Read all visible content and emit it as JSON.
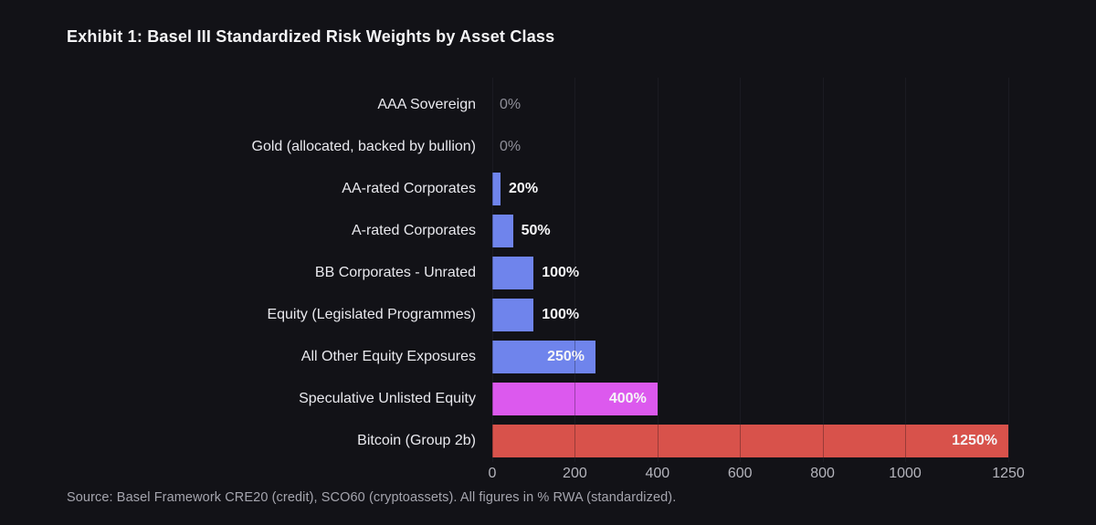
{
  "title": "Exhibit 1: Basel III Standardized Risk Weights by Asset Class",
  "source": "Source: Basel Framework CRE20 (credit), SCO60 (cryptoassets). All figures in % RWA (standardized).",
  "colors": {
    "background": "#121217",
    "bar_blue": "#6f84ec",
    "bar_magenta": "#dc59ee",
    "bar_red": "#d8524b",
    "grid": "#24242b",
    "title_text": "#f4f4f6",
    "category_text": "#e9e9ee",
    "value_text": "#f6f6f8",
    "zero_value_text": "#8f8f99",
    "tick_text": "#b4b4bc",
    "source_text": "#a5a5ae"
  },
  "chart_data": {
    "type": "bar",
    "orientation": "horizontal",
    "title": "Exhibit 1: Basel III Standardized Risk Weights by Asset Class",
    "xlabel": "",
    "ylabel": "",
    "xlim": [
      0,
      1250
    ],
    "xticks": [
      0,
      200,
      400,
      600,
      800,
      1000,
      1250
    ],
    "grid": true,
    "unit": "% RWA",
    "categories": [
      "AAA Sovereign",
      "Gold (allocated, backed by bullion)",
      "AA-rated Corporates",
      "A-rated Corporates",
      "BB Corporates - Unrated",
      "Equity (Legislated Programmes)",
      "All Other Equity Exposures",
      "Speculative Unlisted Equity",
      "Bitcoin (Group 2b)"
    ],
    "values": [
      0,
      0,
      20,
      50,
      100,
      100,
      250,
      400,
      1250
    ],
    "value_labels": [
      "0%",
      "0%",
      "20%",
      "50%",
      "100%",
      "100%",
      "250%",
      "400%",
      "1250%"
    ],
    "bar_colors": [
      "none",
      "none",
      "#6f84ec",
      "#6f84ec",
      "#6f84ec",
      "#6f84ec",
      "#6f84ec",
      "#dc59ee",
      "#d8524b"
    ],
    "label_placement": [
      "zero",
      "zero",
      "outside",
      "outside",
      "outside",
      "outside",
      "inside",
      "inside",
      "inside"
    ]
  }
}
